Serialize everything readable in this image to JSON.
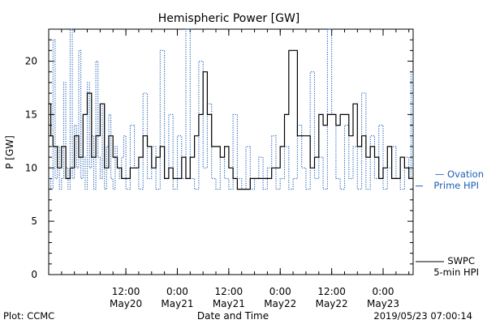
{
  "chart_data": {
    "type": "line",
    "title": "Hemispheric Power [GW]",
    "ylabel": "P [GW]",
    "xlabel": "Date and Time",
    "ylim": [
      0,
      23
    ],
    "yticks": [
      "0",
      "5",
      "10",
      "15",
      "20"
    ],
    "xlim": [
      "2019-05-19T18:00",
      "2019-05-23T07:00"
    ],
    "xticks": [
      {
        "x": "2019-05-20T12:00",
        "time": "12:00",
        "date": "May20"
      },
      {
        "x": "2019-05-21T00:00",
        "time": "0:00",
        "date": "May21"
      },
      {
        "x": "2019-05-21T12:00",
        "time": "12:00",
        "date": "May21"
      },
      {
        "x": "2019-05-22T00:00",
        "time": "0:00",
        "date": "May22"
      },
      {
        "x": "2019-05-22T12:00",
        "time": "12:00",
        "date": "May22"
      },
      {
        "x": "2019-05-23T00:00",
        "time": "0:00",
        "date": "May23"
      }
    ],
    "series": [
      {
        "name": "SWPC 5-min HPI",
        "legend_lines": [
          "SWPC",
          "5-min HPI"
        ],
        "color": "#000000",
        "style": "solid",
        "x": [
          "2019-05-19T18:00",
          "2019-05-19T18:30",
          "2019-05-19T19:00",
          "2019-05-19T20:00",
          "2019-05-19T21:00",
          "2019-05-19T22:00",
          "2019-05-19T23:00",
          "2019-05-20T00:00",
          "2019-05-20T01:00",
          "2019-05-20T02:00",
          "2019-05-20T03:00",
          "2019-05-20T04:00",
          "2019-05-20T05:00",
          "2019-05-20T06:00",
          "2019-05-20T07:00",
          "2019-05-20T08:00",
          "2019-05-20T09:00",
          "2019-05-20T10:00",
          "2019-05-20T11:00",
          "2019-05-20T12:00",
          "2019-05-20T13:00",
          "2019-05-20T14:00",
          "2019-05-20T15:00",
          "2019-05-20T16:00",
          "2019-05-20T17:00",
          "2019-05-20T18:00",
          "2019-05-20T19:00",
          "2019-05-20T20:00",
          "2019-05-20T21:00",
          "2019-05-20T22:00",
          "2019-05-20T23:00",
          "2019-05-21T00:00",
          "2019-05-21T01:00",
          "2019-05-21T02:00",
          "2019-05-21T03:00",
          "2019-05-21T04:00",
          "2019-05-21T05:00",
          "2019-05-21T06:00",
          "2019-05-21T07:00",
          "2019-05-21T08:00",
          "2019-05-21T09:00",
          "2019-05-21T10:00",
          "2019-05-21T11:00",
          "2019-05-21T12:00",
          "2019-05-21T13:00",
          "2019-05-21T14:00",
          "2019-05-21T15:00",
          "2019-05-21T16:00",
          "2019-05-21T17:00",
          "2019-05-21T18:00",
          "2019-05-21T19:00",
          "2019-05-21T20:00",
          "2019-05-21T22:00",
          "2019-05-22T00:00",
          "2019-05-22T01:00",
          "2019-05-22T02:00",
          "2019-05-22T04:00",
          "2019-05-22T06:00",
          "2019-05-22T07:00",
          "2019-05-22T08:00",
          "2019-05-22T09:00",
          "2019-05-22T10:00",
          "2019-05-22T11:00",
          "2019-05-22T12:00",
          "2019-05-22T13:00",
          "2019-05-22T14:00",
          "2019-05-22T15:00",
          "2019-05-22T16:00",
          "2019-05-22T17:00",
          "2019-05-22T18:00",
          "2019-05-22T19:00",
          "2019-05-22T20:00",
          "2019-05-22T21:00",
          "2019-05-22T22:00",
          "2019-05-22T23:00",
          "2019-05-23T00:00",
          "2019-05-23T01:00",
          "2019-05-23T02:00",
          "2019-05-23T03:00",
          "2019-05-23T04:00",
          "2019-05-23T05:00",
          "2019-05-23T06:00",
          "2019-05-23T07:00"
        ],
        "y": [
          16,
          13,
          12,
          10,
          12,
          9,
          10,
          13,
          11,
          15,
          17,
          11,
          13,
          16,
          10,
          13,
          11,
          10,
          9,
          9,
          10,
          10,
          11,
          13,
          12,
          10,
          11,
          12,
          9,
          10,
          9,
          9,
          11,
          9,
          11,
          13,
          15,
          19,
          15,
          12,
          12,
          11,
          12,
          10,
          9,
          8,
          8,
          8,
          9,
          9,
          9,
          9,
          10,
          12,
          15,
          21,
          13,
          13,
          10,
          11,
          15,
          14,
          15,
          15,
          14,
          15,
          15,
          13,
          16,
          12,
          13,
          11,
          12,
          11,
          9,
          10,
          12,
          9,
          9,
          11,
          10,
          9,
          9
        ]
      },
      {
        "name": "Ovation Prime HPI",
        "legend_lines": [
          "— Ovation",
          "Prime HPI"
        ],
        "color": "#1f5fb4",
        "style": "dotted",
        "x": [
          "2019-05-19T18:00",
          "2019-05-19T18:30",
          "2019-05-19T19:00",
          "2019-05-19T19:30",
          "2019-05-19T20:00",
          "2019-05-19T20:30",
          "2019-05-19T21:00",
          "2019-05-19T21:30",
          "2019-05-19T22:00",
          "2019-05-19T22:30",
          "2019-05-19T23:00",
          "2019-05-19T23:30",
          "2019-05-20T00:00",
          "2019-05-20T00:30",
          "2019-05-20T01:00",
          "2019-05-20T01:30",
          "2019-05-20T02:00",
          "2019-05-20T02:30",
          "2019-05-20T03:00",
          "2019-05-20T03:30",
          "2019-05-20T04:00",
          "2019-05-20T04:30",
          "2019-05-20T05:00",
          "2019-05-20T05:30",
          "2019-05-20T06:00",
          "2019-05-20T06:30",
          "2019-05-20T07:00",
          "2019-05-20T07:30",
          "2019-05-20T08:00",
          "2019-05-20T08:30",
          "2019-05-20T09:00",
          "2019-05-20T09:30",
          "2019-05-20T10:00",
          "2019-05-20T10:30",
          "2019-05-20T11:00",
          "2019-05-20T11:30",
          "2019-05-20T12:00",
          "2019-05-20T13:00",
          "2019-05-20T14:00",
          "2019-05-20T15:00",
          "2019-05-20T16:00",
          "2019-05-20T17:00",
          "2019-05-20T18:00",
          "2019-05-20T19:00",
          "2019-05-20T20:00",
          "2019-05-20T21:00",
          "2019-05-20T22:00",
          "2019-05-20T23:00",
          "2019-05-21T00:00",
          "2019-05-21T01:00",
          "2019-05-21T02:00",
          "2019-05-21T03:00",
          "2019-05-21T04:00",
          "2019-05-21T05:00",
          "2019-05-21T06:00",
          "2019-05-21T07:00",
          "2019-05-21T08:00",
          "2019-05-21T09:00",
          "2019-05-21T10:00",
          "2019-05-21T11:00",
          "2019-05-21T12:00",
          "2019-05-21T13:00",
          "2019-05-21T14:00",
          "2019-05-21T15:00",
          "2019-05-21T16:00",
          "2019-05-21T17:00",
          "2019-05-21T18:00",
          "2019-05-21T19:00",
          "2019-05-21T20:00",
          "2019-05-21T21:00",
          "2019-05-21T22:00",
          "2019-05-21T23:00",
          "2019-05-22T00:00",
          "2019-05-22T01:00",
          "2019-05-22T02:00",
          "2019-05-22T03:00",
          "2019-05-22T04:00",
          "2019-05-22T05:00",
          "2019-05-22T06:00",
          "2019-05-22T07:00",
          "2019-05-22T08:00",
          "2019-05-22T09:00",
          "2019-05-22T10:00",
          "2019-05-22T11:00",
          "2019-05-22T12:00",
          "2019-05-22T13:00",
          "2019-05-22T14:00",
          "2019-05-22T15:00",
          "2019-05-22T16:00",
          "2019-05-22T17:00",
          "2019-05-22T18:00",
          "2019-05-22T19:00",
          "2019-05-22T20:00",
          "2019-05-22T21:00",
          "2019-05-22T22:00",
          "2019-05-22T23:00",
          "2019-05-23T00:00",
          "2019-05-23T01:00",
          "2019-05-23T02:00",
          "2019-05-23T03:00",
          "2019-05-23T04:00",
          "2019-05-23T05:00",
          "2019-05-23T06:00",
          "2019-05-23T06:30",
          "2019-05-23T07:00"
        ],
        "y": [
          9,
          8,
          22,
          9,
          12,
          8,
          9,
          18,
          10,
          8,
          23,
          9,
          14,
          10,
          21,
          9,
          11,
          8,
          18,
          10,
          13,
          8,
          20,
          11,
          9,
          16,
          8,
          12,
          15,
          9,
          8,
          12,
          10,
          9,
          11,
          13,
          8,
          14,
          10,
          8,
          17,
          9,
          12,
          8,
          21,
          9,
          15,
          8,
          13,
          9,
          23,
          9,
          8,
          20,
          10,
          16,
          9,
          8,
          11,
          9,
          8,
          15,
          9,
          8,
          12,
          8,
          9,
          11,
          8,
          10,
          13,
          8,
          9,
          12,
          8,
          9,
          14,
          10,
          8,
          19,
          9,
          11,
          8,
          23,
          15,
          9,
          8,
          14,
          9,
          12,
          8,
          17,
          8,
          13,
          9,
          14,
          8,
          10,
          12,
          9,
          8,
          11,
          9,
          19,
          10
        ]
      }
    ],
    "annotations": {
      "plot_credit": "Plot: CCMC",
      "timestamp": "2019/05/23 07:00:14"
    }
  }
}
